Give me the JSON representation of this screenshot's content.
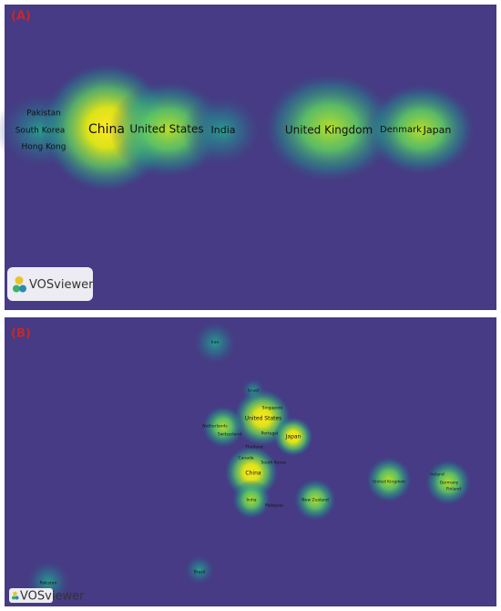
{
  "panel_a": {
    "label": "(A)",
    "logo": "VOSviewer",
    "terms": [
      "Pakistan",
      "South Korea",
      "Hong Kong",
      "China",
      "United States",
      "India",
      "United Kingdom",
      "Denmark",
      "Japan"
    ]
  },
  "panel_b": {
    "label": "(B)",
    "logo": "VOSviewer",
    "terms": [
      "Iran",
      "Israel",
      "Singapore",
      "United States",
      "Portugal",
      "Netherlands",
      "Switzerland",
      "Japan",
      "Thailand",
      "Canada",
      "South Korea",
      "China",
      "India",
      "Malaysia",
      "New Zealand",
      "United Kingdom",
      "Ireland",
      "Germany",
      "Finland",
      "Brazil",
      "Pakistan"
    ]
  }
}
